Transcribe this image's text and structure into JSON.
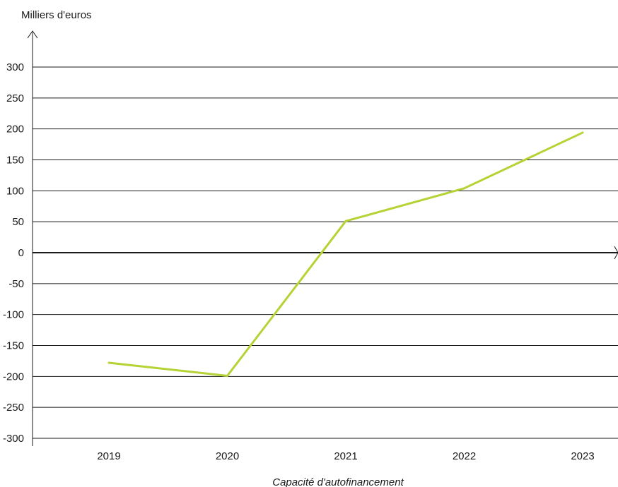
{
  "chart_data": {
    "type": "line",
    "ylabel": "Milliers d'euros",
    "categories": [
      "2019",
      "2020",
      "2021",
      "2022",
      "2023"
    ],
    "series": [
      {
        "name": "Capacité d'autofinancement",
        "values": [
          -178,
          -199,
          51,
          104,
          194
        ],
        "color": "#b5d334"
      }
    ],
    "ylim": [
      -300,
      300
    ],
    "yticks": [
      300,
      250,
      200,
      150,
      100,
      50,
      0,
      -50,
      -100,
      -150,
      -200,
      -250,
      -300
    ],
    "grid": true,
    "legend_position": "bottom"
  }
}
